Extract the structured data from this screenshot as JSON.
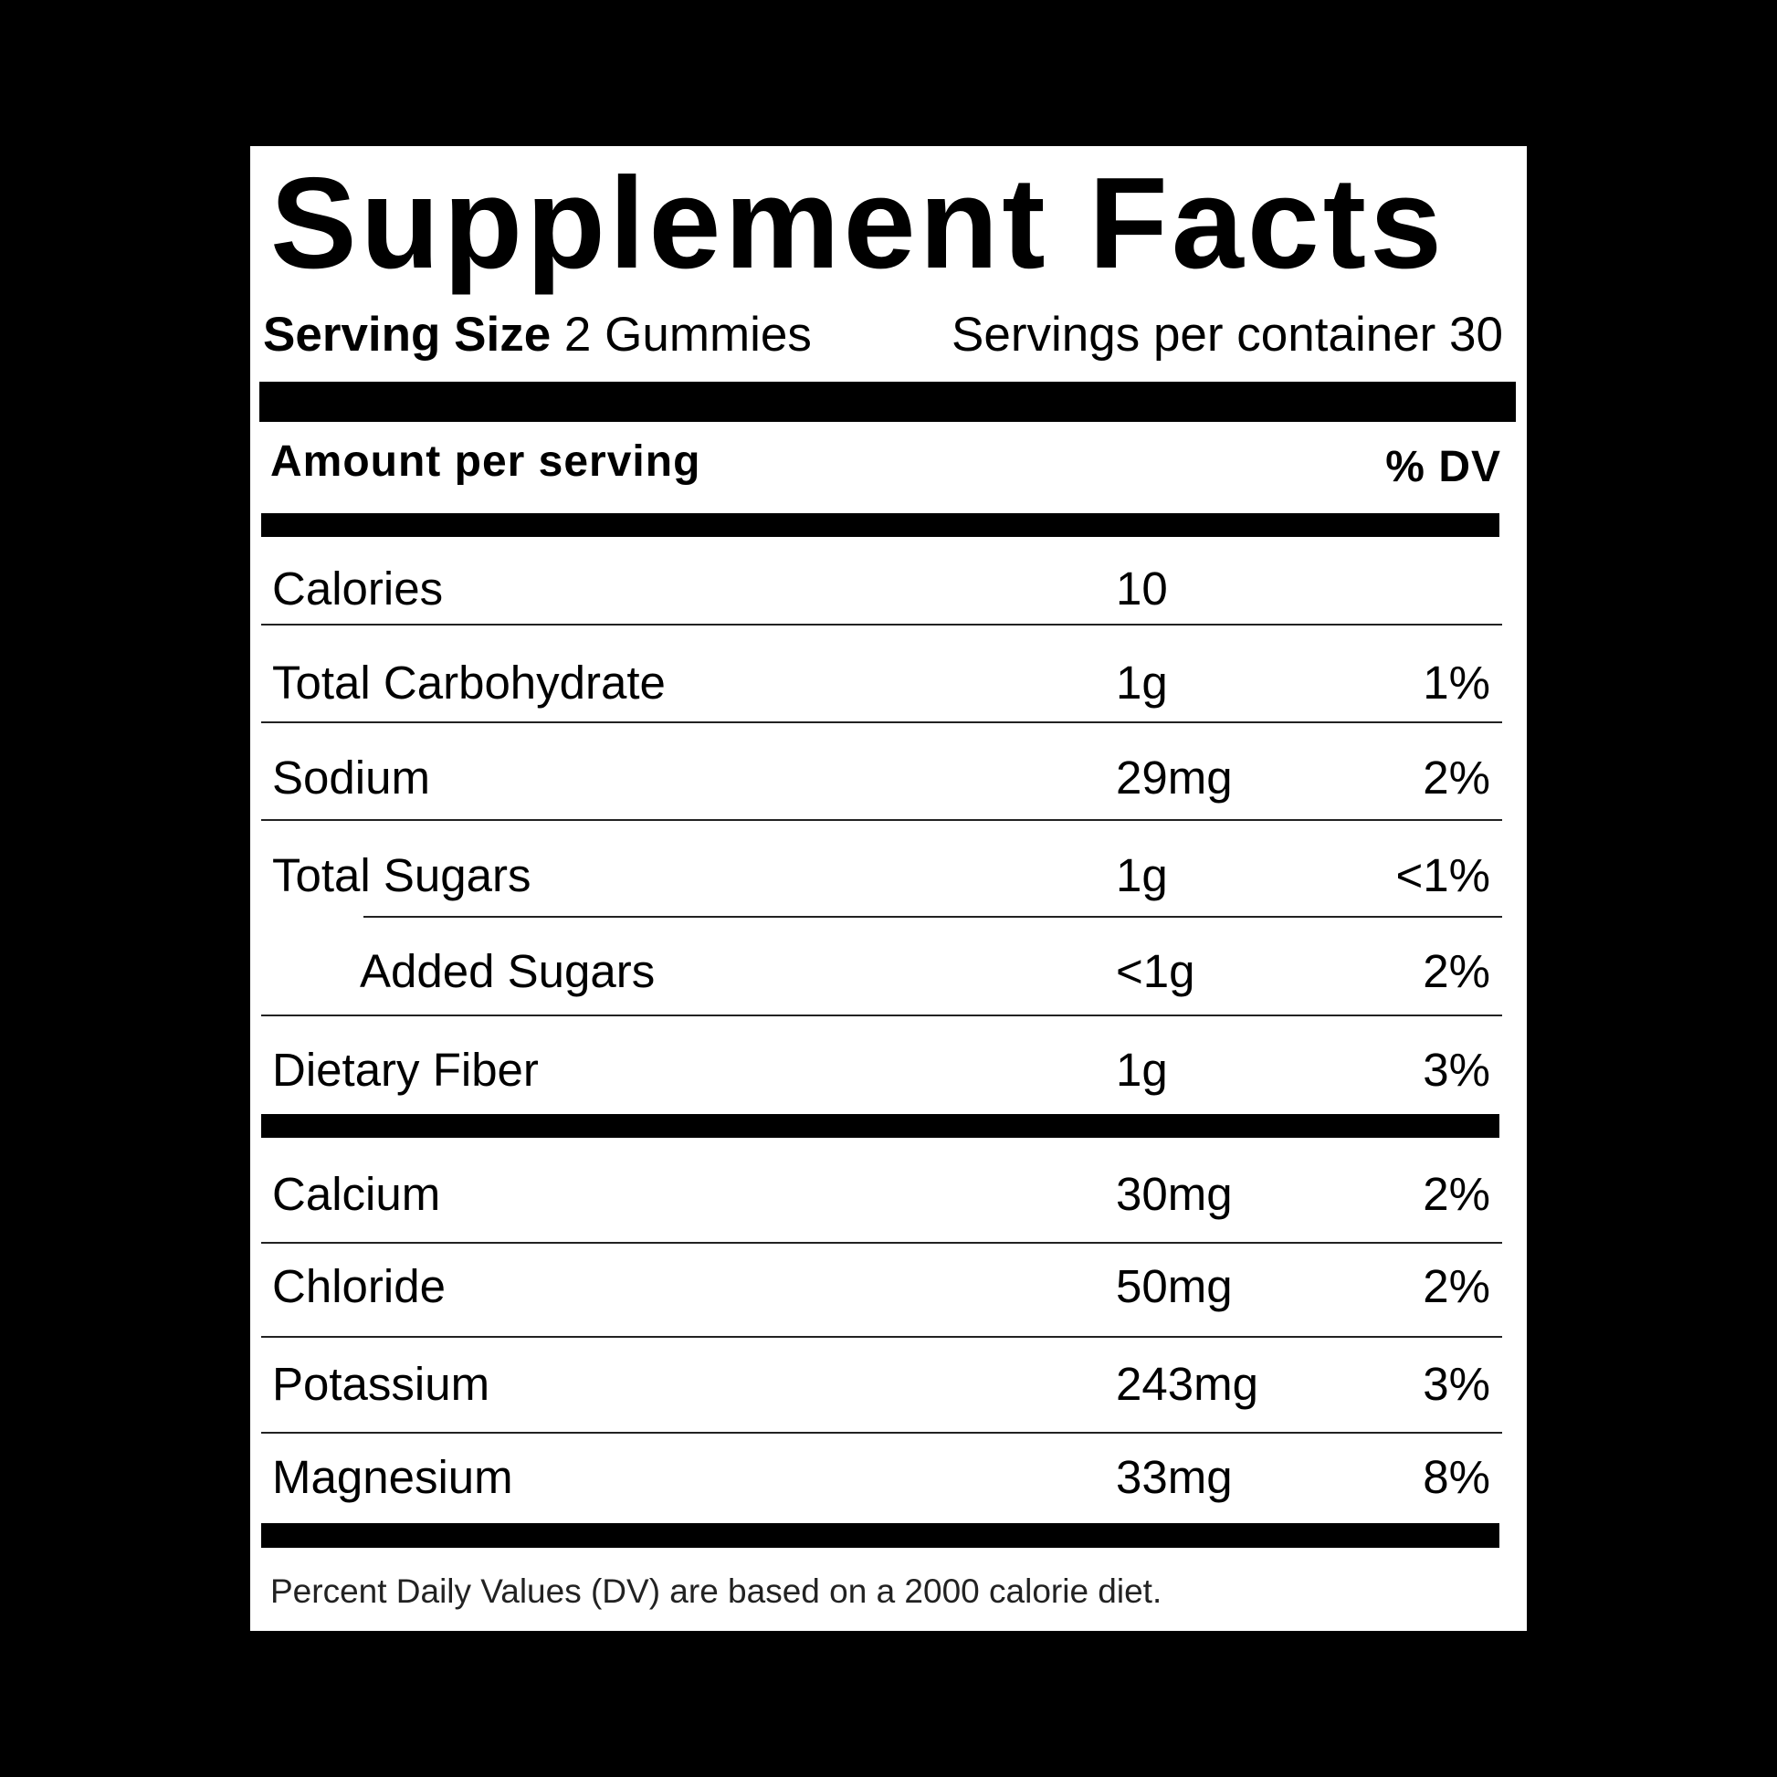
{
  "title": "Supplement Facts",
  "serving_size_label": "Serving Size",
  "serving_size_value": "2 Gummies",
  "servings_per_container": "Servings per container 30",
  "amount_per_serving": "Amount per serving",
  "dv_header": "% DV",
  "group1": [
    {
      "name": "Calories",
      "amount": "10",
      "dv": ""
    },
    {
      "name": "Total Carbohydrate",
      "amount": "1g",
      "dv": "1%"
    },
    {
      "name": "Sodium",
      "amount": "29mg",
      "dv": "2%"
    },
    {
      "name": "Total Sugars",
      "amount": "1g",
      "dv": "<1%"
    },
    {
      "name": "Added Sugars",
      "amount": "<1g",
      "dv": "2%"
    },
    {
      "name": "Dietary Fiber",
      "amount": "1g",
      "dv": "3%"
    }
  ],
  "group2": [
    {
      "name": "Calcium",
      "amount": "30mg",
      "dv": "2%"
    },
    {
      "name": "Chloride",
      "amount": "50mg",
      "dv": "2%"
    },
    {
      "name": "Potassium",
      "amount": "243mg",
      "dv": "3%"
    },
    {
      "name": "Magnesium",
      "amount": "33mg",
      "dv": "8%"
    }
  ],
  "footnote": "Percent Daily Values (DV) are based on a 2000 calorie diet."
}
